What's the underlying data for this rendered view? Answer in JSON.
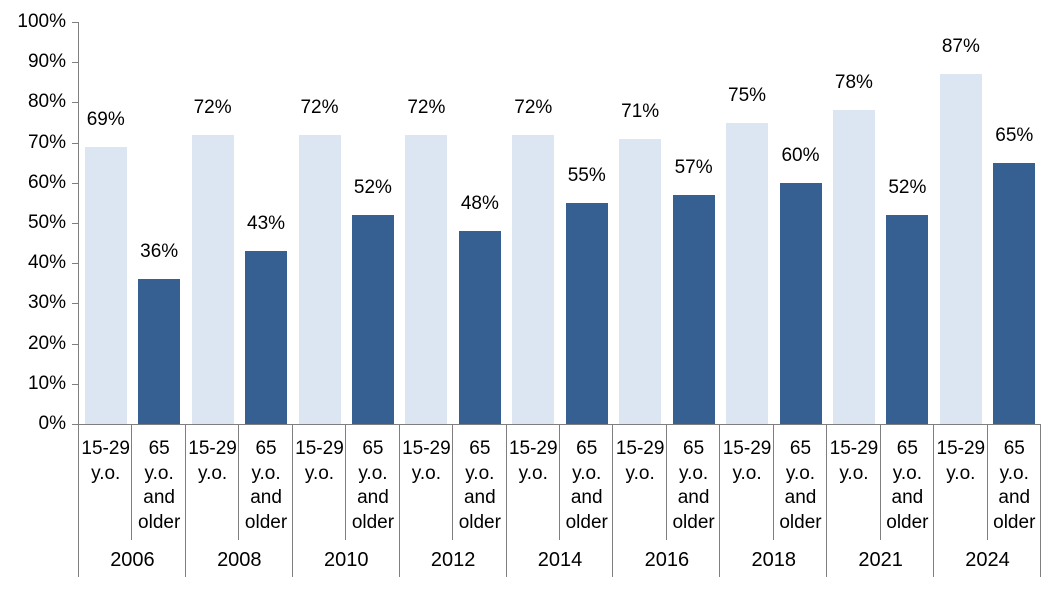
{
  "chart_data": {
    "type": "bar",
    "title": "",
    "categories": [
      "2006",
      "2008",
      "2010",
      "2012",
      "2014",
      "2016",
      "2018",
      "2021",
      "2024"
    ],
    "series": [
      {
        "name": "15-29 y.o.",
        "label_lines": [
          "15-29",
          "y.o."
        ],
        "color": "#dce6f2",
        "values": [
          69,
          72,
          72,
          72,
          72,
          71,
          75,
          78,
          87
        ]
      },
      {
        "name": "65 y.o. and older",
        "label_lines": [
          "65",
          "y.o.",
          "and",
          "older"
        ],
        "color": "#366092",
        "values": [
          36,
          43,
          52,
          48,
          55,
          57,
          60,
          52,
          65
        ]
      }
    ],
    "data_labels": {
      "15-29 y.o.": [
        "69%",
        "72%",
        "72%",
        "72%",
        "72%",
        "71%",
        "75%",
        "78%",
        "87%"
      ],
      "65 y.o. and older": [
        "36%",
        "43%",
        "52%",
        "48%",
        "55%",
        "57%",
        "60%",
        "52%",
        "65%"
      ]
    },
    "y_ticks": [
      "100%",
      "90%",
      "80%",
      "70%",
      "60%",
      "50%",
      "40%",
      "30%",
      "20%",
      "10%",
      "0%"
    ],
    "ylim": [
      0,
      100
    ],
    "xlabel": "",
    "ylabel": "",
    "grid": false,
    "legend_position": "none",
    "value_suffix": "%"
  },
  "colors": {
    "bar_light": "#dce6f2",
    "bar_dark": "#366092",
    "axis_line": "#7f7f7f",
    "text": "#000000",
    "background": "#ffffff"
  }
}
